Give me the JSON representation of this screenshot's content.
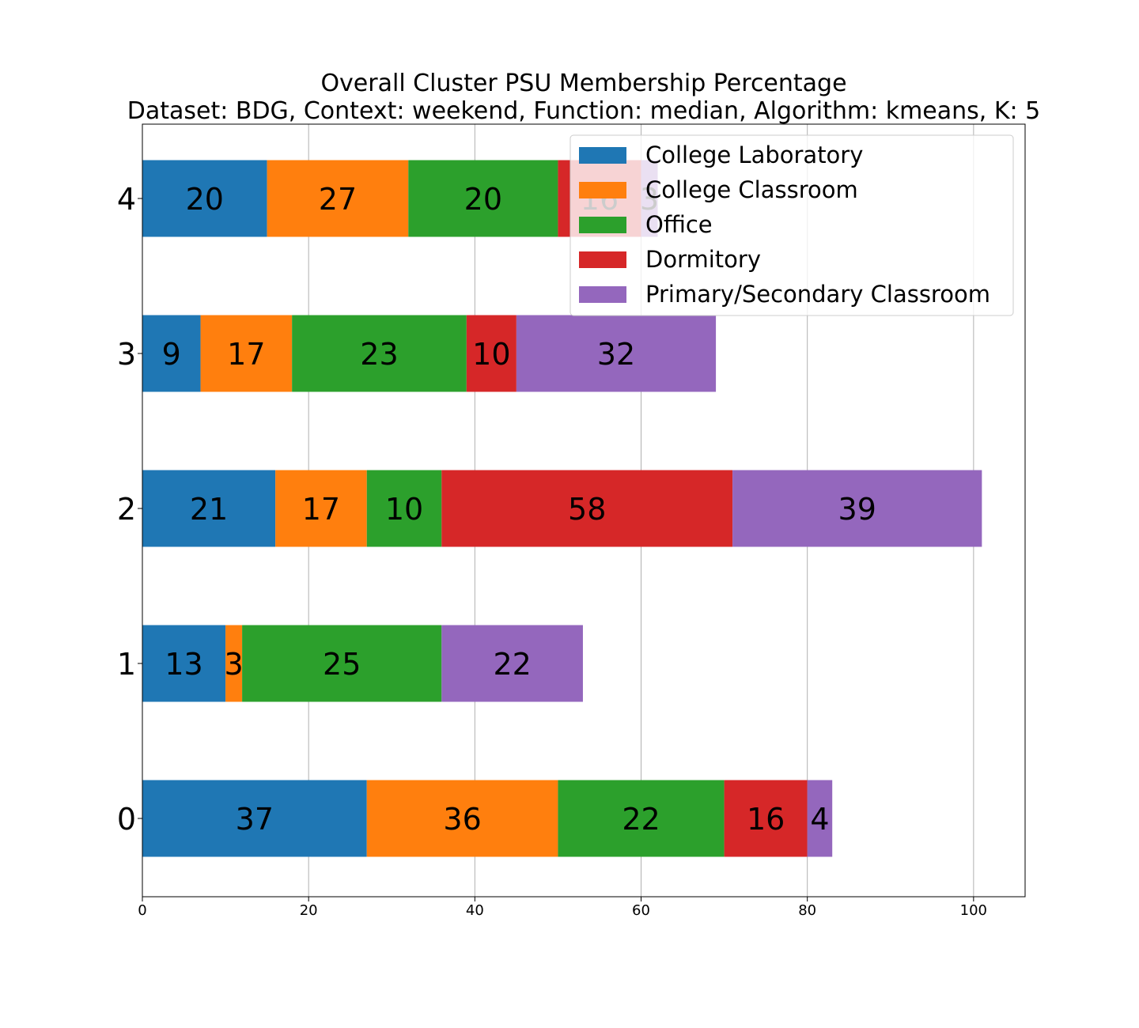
{
  "chart_data": {
    "type": "bar",
    "orientation": "horizontal",
    "stacked": true,
    "title": [
      "Overall Cluster  PSU Membership Percentage",
      "Dataset: BDG, Context: weekend, Function: median, Algorithm: kmeans, K: 5"
    ],
    "categories": [
      "0",
      "1",
      "2",
      "3",
      "4"
    ],
    "series": [
      {
        "name": "College Laboratory",
        "color": "#1f77b4",
        "values": [
          27,
          10,
          16,
          7,
          15
        ],
        "labels": [
          "37",
          "13",
          "21",
          "9",
          "20"
        ]
      },
      {
        "name": "College Classroom",
        "color": "#ff7f0e",
        "values": [
          23,
          2,
          11,
          11,
          17
        ],
        "labels": [
          "36",
          "3",
          "17",
          "17",
          "27"
        ]
      },
      {
        "name": "Office",
        "color": "#2ca02c",
        "values": [
          20,
          24,
          9,
          21,
          18
        ],
        "labels": [
          "22",
          "25",
          "10",
          "23",
          "20"
        ]
      },
      {
        "name": "Dormitory",
        "color": "#d62728",
        "values": [
          10,
          0,
          35,
          6,
          10
        ],
        "labels": [
          "16",
          "",
          "58",
          "10",
          "16"
        ]
      },
      {
        "name": "Primary/Secondary Classroom",
        "color": "#9467bd",
        "values": [
          3,
          17,
          30,
          24,
          2
        ],
        "labels": [
          "4",
          "22",
          "39",
          "32",
          "3"
        ]
      }
    ],
    "xticks": [
      "0",
      "20",
      "40",
      "60",
      "80",
      "100"
    ],
    "xlim": [
      0,
      106.2
    ],
    "grid": "vertical",
    "legend": "top-right"
  }
}
